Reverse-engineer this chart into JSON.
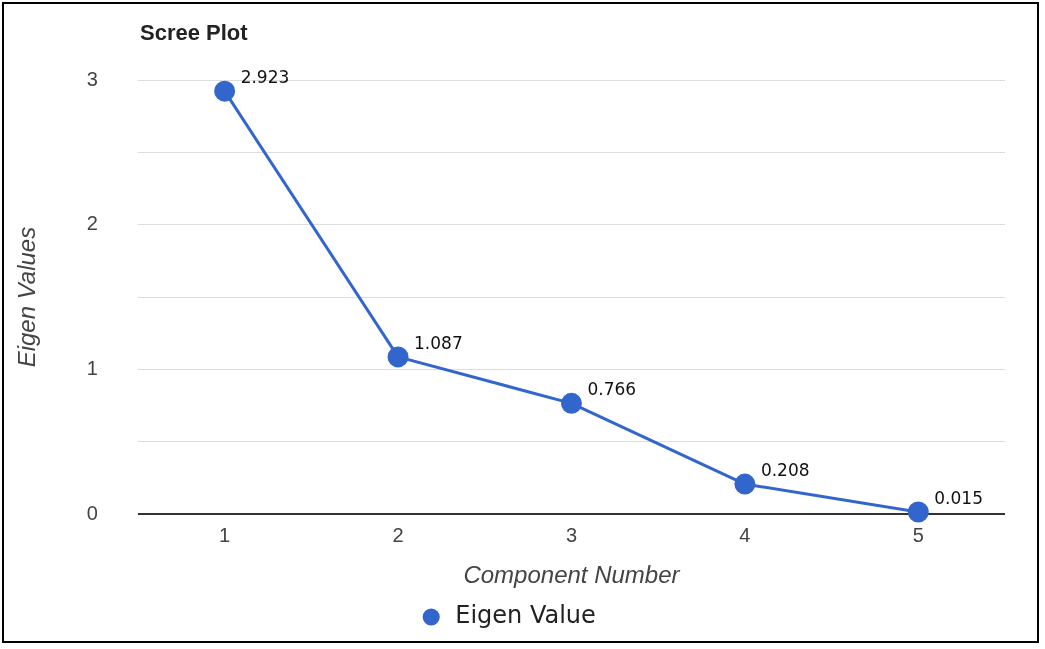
{
  "chart_data": {
    "type": "line",
    "title": "Scree Plot",
    "xlabel": "Component Number",
    "ylabel": "Eigen Values",
    "categories": [
      "1",
      "2",
      "3",
      "4",
      "5"
    ],
    "series": [
      {
        "name": "Eigen Value",
        "color": "#3366cc",
        "values": [
          2.923,
          1.087,
          0.766,
          0.208,
          0.015
        ]
      }
    ],
    "ylim": [
      0,
      3
    ],
    "yticks": [
      0,
      {
        "value": 0.5,
        "label": null
      },
      1,
      {
        "value": 1.5,
        "label": null
      },
      2,
      {
        "value": 2.5,
        "label": null
      },
      3
    ],
    "grid": "y",
    "legend": "bottom",
    "marker": "circle",
    "line_style": "solid",
    "data_labels": true
  }
}
